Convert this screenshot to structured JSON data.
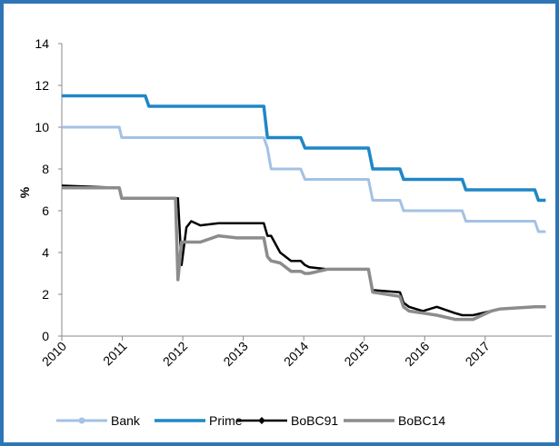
{
  "chart_data": {
    "type": "line",
    "y_label": "%",
    "x": [
      2010.0,
      2010.95,
      2010.99,
      2011.38,
      2011.44,
      2011.88,
      2011.92,
      2011.98,
      2012.06,
      2012.14,
      2012.29,
      2012.59,
      2012.89,
      2013.34,
      2013.4,
      2013.46,
      2013.61,
      2013.79,
      2013.95,
      2014.02,
      2014.09,
      2014.39,
      2015.07,
      2015.14,
      2015.59,
      2015.65,
      2015.74,
      2015.97,
      2016.2,
      2016.5,
      2016.62,
      2016.68,
      2016.8,
      2017.1,
      2017.25,
      2017.82,
      2017.88,
      2018.0
    ],
    "series": [
      {
        "name": "Bank",
        "color": "#a3c2e4",
        "values": [
          10,
          10,
          9.5,
          9.5,
          9.5,
          9.5,
          9.5,
          9.5,
          9.5,
          9.5,
          9.5,
          9.5,
          9.5,
          9.5,
          9,
          8,
          8,
          8,
          8,
          7.5,
          7.5,
          7.5,
          7.5,
          6.5,
          6.5,
          6,
          6,
          6,
          6,
          6,
          6,
          5.5,
          5.5,
          5.5,
          5.5,
          5.5,
          5,
          5
        ]
      },
      {
        "name": "Prime",
        "color": "#1f87c7",
        "values": [
          11.5,
          11.5,
          11.5,
          11.5,
          11,
          11,
          11,
          11,
          11,
          11,
          11,
          11,
          11,
          11,
          9.5,
          9.5,
          9.5,
          9.5,
          9.5,
          9,
          9,
          9,
          9,
          8,
          8,
          7.5,
          7.5,
          7.5,
          7.5,
          7.5,
          7.5,
          7,
          7,
          7,
          7,
          7,
          6.5,
          6.5
        ]
      },
      {
        "name": "BoBC91",
        "color": "#000000",
        "values": [
          7.2,
          7.1,
          6.6,
          6.6,
          6.6,
          6.6,
          6.6,
          3.4,
          5.2,
          5.5,
          5.3,
          5.4,
          5.4,
          5.4,
          4.8,
          4.8,
          4.0,
          3.6,
          3.6,
          3.4,
          3.3,
          3.2,
          3.2,
          2.2,
          2.1,
          1.6,
          1.4,
          1.2,
          1.4,
          1.1,
          1.0,
          1.0,
          1.0,
          1.2,
          1.3,
          1.4,
          1.4,
          1.4
        ]
      },
      {
        "name": "BoBC14",
        "color": "#8c8c8c",
        "values": [
          7.1,
          7.1,
          6.6,
          6.6,
          6.6,
          6.6,
          2.7,
          4.5,
          4.5,
          4.5,
          4.5,
          4.8,
          4.7,
          4.7,
          3.8,
          3.6,
          3.5,
          3.1,
          3.1,
          3.0,
          3.0,
          3.2,
          3.2,
          2.1,
          1.9,
          1.4,
          1.2,
          1.1,
          1.0,
          0.8,
          0.8,
          0.8,
          0.8,
          1.2,
          1.3,
          1.4,
          1.4,
          1.4
        ]
      }
    ],
    "xlim": [
      2010,
      2018.1
    ],
    "xticks": [
      2010,
      2011,
      2012,
      2013,
      2014,
      2015,
      2016,
      2017
    ],
    "ylim": [
      0,
      14
    ],
    "yticks": [
      0,
      2,
      4,
      6,
      8,
      10,
      12,
      14
    ],
    "legend": "bottom"
  }
}
